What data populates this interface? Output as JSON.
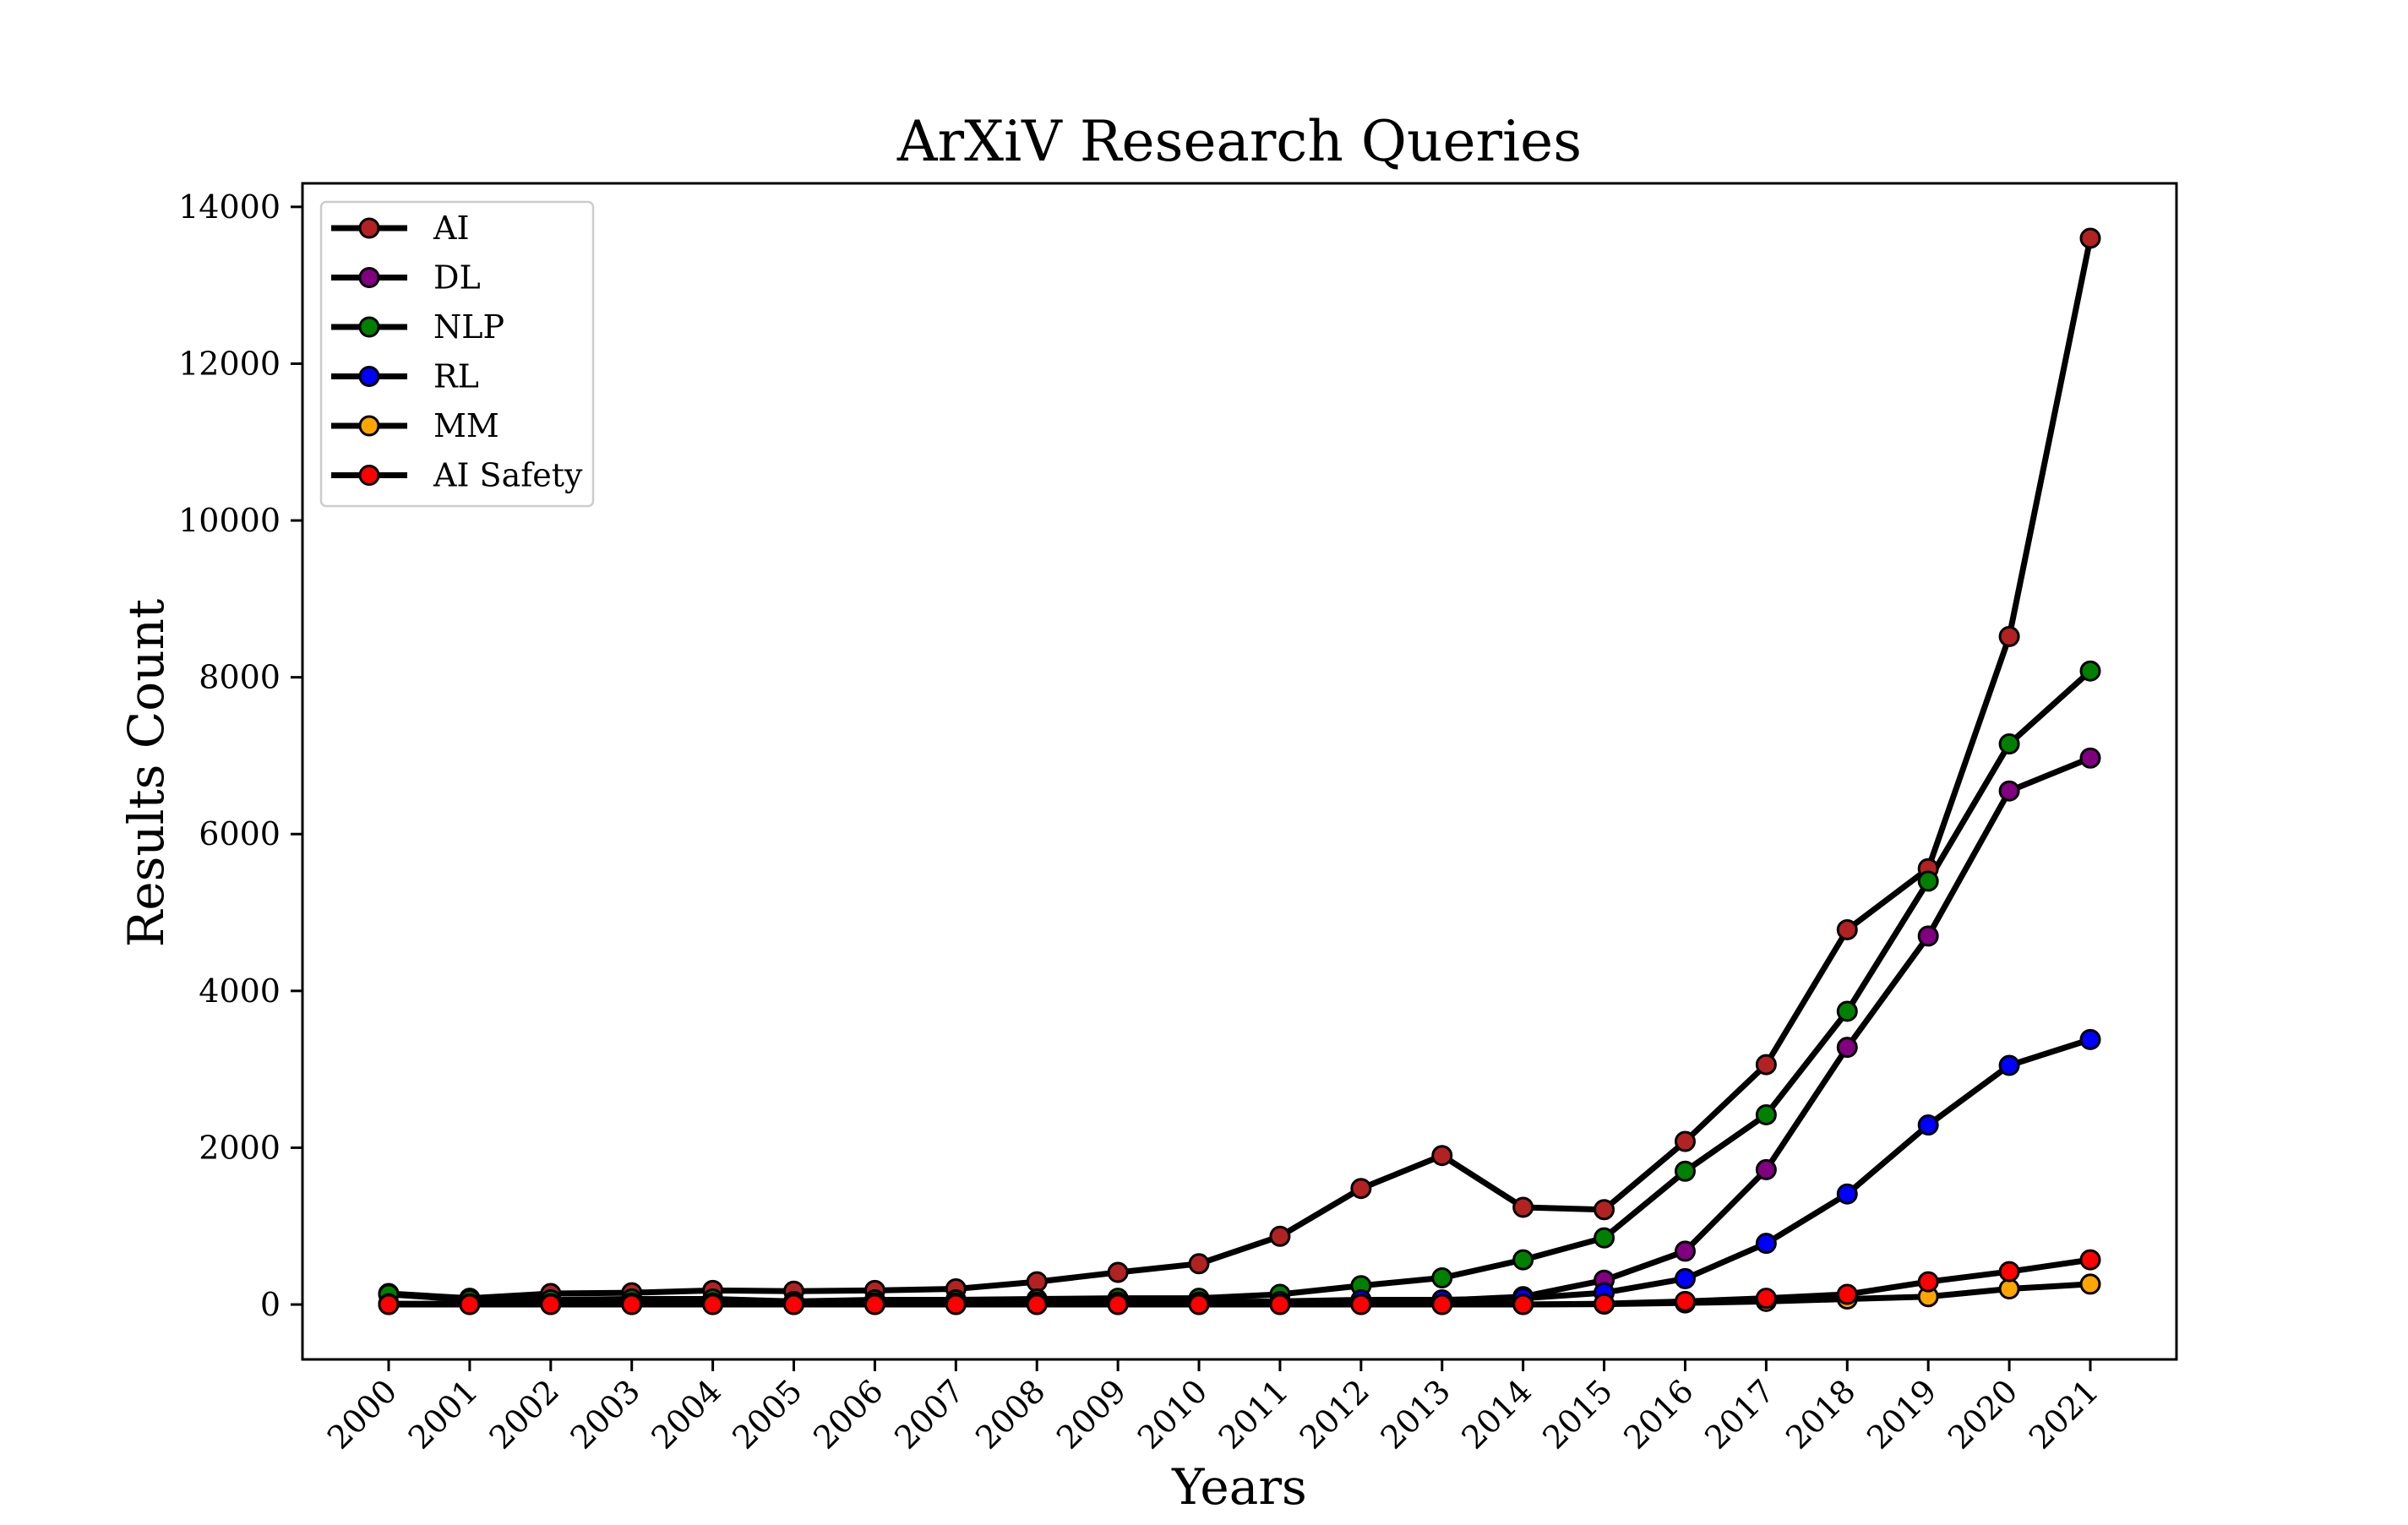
{
  "chart_data": {
    "type": "line",
    "title": "ArXiV Research Queries",
    "xlabel": "Years",
    "ylabel": "Results Count",
    "x": [
      "2000",
      "2001",
      "2002",
      "2003",
      "2004",
      "2005",
      "2006",
      "2007",
      "2008",
      "2009",
      "2010",
      "2011",
      "2012",
      "2013",
      "2014",
      "2015",
      "2016",
      "2017",
      "2018",
      "2019",
      "2020",
      "2021"
    ],
    "ylim": [
      -700,
      14300
    ],
    "yticks": [
      0,
      2000,
      4000,
      6000,
      8000,
      10000,
      12000,
      14000
    ],
    "grid": false,
    "legend_position": "top-left",
    "line_color": "#000000",
    "series": [
      {
        "name": "AI",
        "marker_color": "#b22222",
        "values": [
          140,
          80,
          140,
          150,
          180,
          170,
          180,
          200,
          290,
          410,
          520,
          870,
          1480,
          1900,
          1240,
          1210,
          2080,
          3060,
          4780,
          5560,
          8520,
          13600
        ]
      },
      {
        "name": "DL",
        "marker_color": "#800080",
        "values": [
          5,
          5,
          5,
          5,
          5,
          5,
          5,
          5,
          10,
          10,
          10,
          20,
          40,
          50,
          100,
          310,
          680,
          1720,
          3280,
          4700,
          6550,
          6970
        ]
      },
      {
        "name": "NLP",
        "marker_color": "#008000",
        "values": [
          130,
          60,
          60,
          70,
          70,
          40,
          60,
          60,
          70,
          80,
          80,
          130,
          240,
          340,
          570,
          850,
          1700,
          2420,
          3740,
          5400,
          7150,
          8080
        ]
      },
      {
        "name": "RL",
        "marker_color": "#0000ff",
        "values": [
          10,
          10,
          10,
          20,
          20,
          20,
          20,
          20,
          30,
          30,
          30,
          40,
          60,
          60,
          80,
          150,
          330,
          780,
          1410,
          2290,
          3050,
          3380
        ]
      },
      {
        "name": "MM",
        "marker_color": "#ffa500",
        "values": [
          0,
          0,
          0,
          0,
          0,
          0,
          0,
          0,
          0,
          0,
          0,
          0,
          0,
          0,
          0,
          5,
          20,
          40,
          70,
          100,
          200,
          260
        ]
      },
      {
        "name": "AI Safety",
        "marker_color": "#ff0000",
        "values": [
          0,
          0,
          0,
          0,
          0,
          0,
          0,
          0,
          0,
          0,
          0,
          0,
          0,
          0,
          0,
          10,
          40,
          80,
          130,
          290,
          420,
          570
        ]
      }
    ]
  }
}
